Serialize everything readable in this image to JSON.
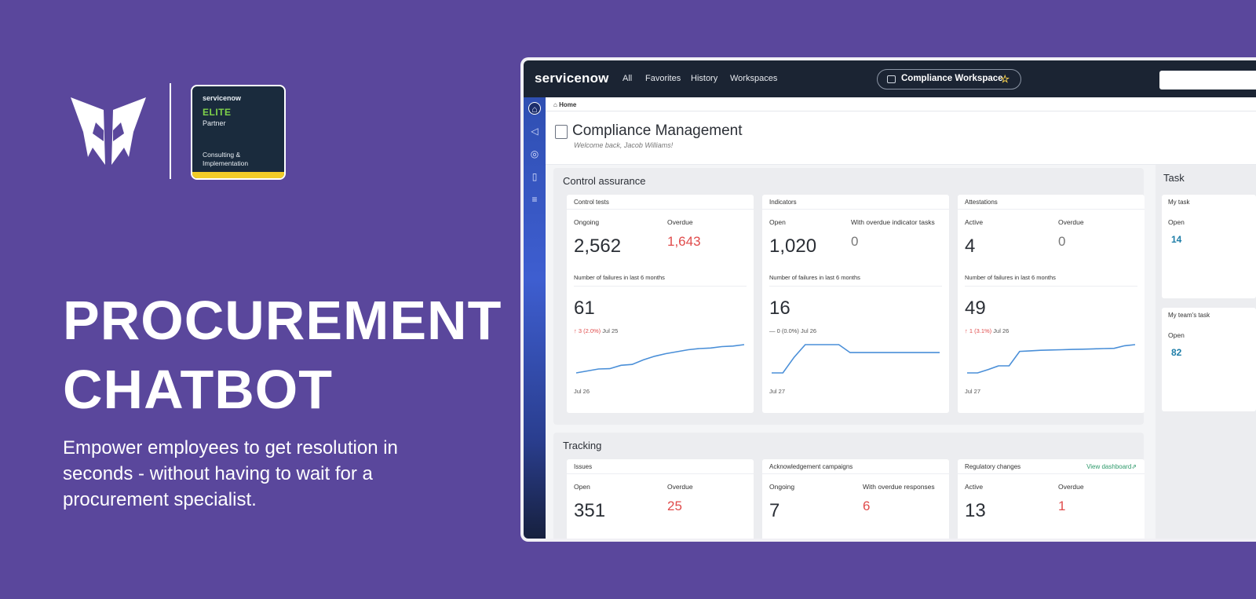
{
  "brand": {
    "logo_icon": "butterfly-logo-icon",
    "badge": {
      "brand": "servicenow",
      "tier": "ELITE",
      "partner": "Partner",
      "specialty": "Consulting & Implementation",
      "accent_color": "#f1cc28"
    }
  },
  "hero": {
    "title_line1": "PROCUREMENT",
    "title_line2": "CHATBOT",
    "subtitle": "Empower employees to get resolution in seconds - without having to wait for a procurement specialist."
  },
  "app": {
    "logo_text": "servicenow",
    "nav": [
      "All",
      "Favorites",
      "History",
      "Workspaces"
    ],
    "workspace_pill": "Compliance Workspace",
    "breadcrumb": "Home",
    "page_title": "Compliance Management",
    "welcome": "Welcome back, Jacob Williams!",
    "sidebar_icons": [
      "home-icon",
      "megaphone-icon",
      "check-circle-icon",
      "clipboard-icon",
      "list-icon"
    ]
  },
  "control_assurance": {
    "title": "Control assurance",
    "cards": [
      {
        "title": "Control tests",
        "m1_label": "Ongoing",
        "m1_value": "2,562",
        "m2_label": "Overdue",
        "m2_value": "1,643",
        "failures_label": "Number of failures in last 6 months",
        "failures_value": "61",
        "trend": "↑ 3 (2.0%)",
        "trend_date": "Jul 25",
        "x_label": "Jul 26",
        "sparkline": [
          0,
          0.07,
          0.14,
          0.15,
          0.27,
          0.3,
          0.46,
          0.59,
          0.68,
          0.75,
          0.82,
          0.86,
          0.88,
          0.93,
          0.95,
          1.0
        ]
      },
      {
        "title": "Indicators",
        "m1_label": "Open",
        "m1_value": "1,020",
        "m2_label": "With overdue indicator tasks",
        "m2_value": "0",
        "failures_label": "Number of failures in last 6 months",
        "failures_value": "16",
        "trend": "— 0 (0.0%)",
        "trend_date": "Jul 26",
        "x_label": "Jul 27",
        "sparkline": [
          0,
          0,
          0.55,
          1.0,
          1.0,
          1.0,
          1.0,
          0.72,
          0.72,
          0.72,
          0.72,
          0.72,
          0.72,
          0.72,
          0.72,
          0.72
        ]
      },
      {
        "title": "Attestations",
        "m1_label": "Active",
        "m1_value": "4",
        "m2_label": "Overdue",
        "m2_value": "0",
        "failures_label": "Number of failures in last 6 months",
        "failures_value": "49",
        "trend": "↑ 1 (3.1%)",
        "trend_date": "Jul 26",
        "x_label": "Jul 27",
        "sparkline": [
          0,
          0,
          0.12,
          0.25,
          0.25,
          0.76,
          0.78,
          0.8,
          0.81,
          0.82,
          0.83,
          0.84,
          0.85,
          0.86,
          0.87,
          0.96,
          1.0
        ]
      }
    ]
  },
  "tracking": {
    "title": "Tracking",
    "view_dashboard": "View dashboard",
    "cards": [
      {
        "title": "Issues",
        "m1_label": "Open",
        "m1_value": "351",
        "m2_label": "Overdue",
        "m2_value": "25"
      },
      {
        "title": "Acknowledgement campaigns",
        "m1_label": "Ongoing",
        "m1_value": "7",
        "m2_label": "With overdue responses",
        "m2_value": "6"
      },
      {
        "title": "Regulatory changes",
        "m1_label": "Active",
        "m1_value": "13",
        "m2_label": "Overdue",
        "m2_value": "1"
      }
    ]
  },
  "tasks": {
    "title": "Task",
    "my_task": {
      "title": "My task",
      "label": "Open",
      "value": "14"
    },
    "team_task": {
      "title": "My team's task",
      "label": "Open",
      "value": "82"
    }
  },
  "colors": {
    "background": "#5a479c",
    "overdue": "#e04b4b",
    "spark": "#4a8fd8",
    "task_number": "#1f7ea8"
  }
}
